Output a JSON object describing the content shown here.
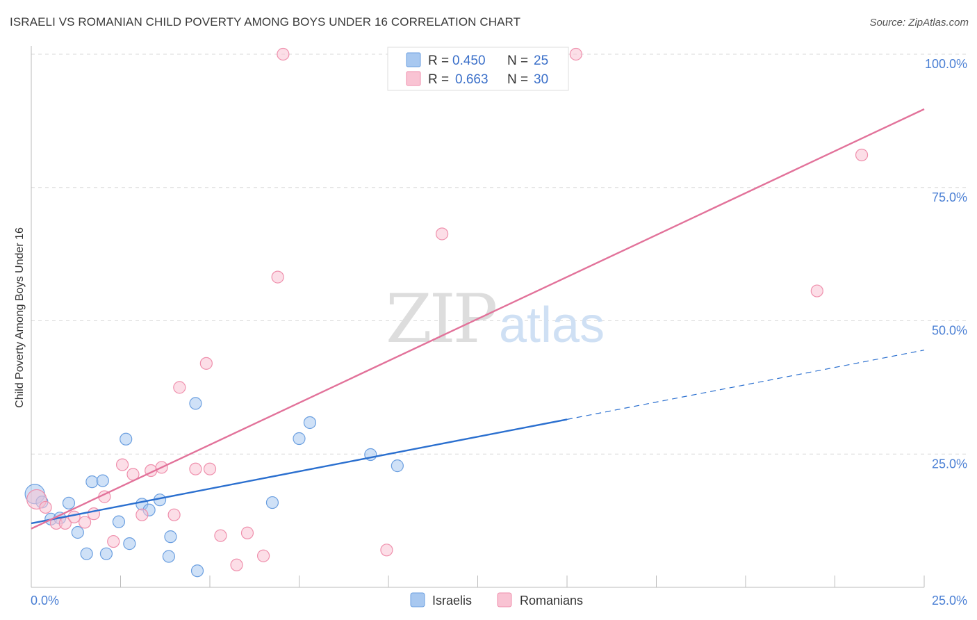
{
  "title": "ISRAELI VS ROMANIAN CHILD POVERTY AMONG BOYS UNDER 16 CORRELATION CHART",
  "source": "Source: ZipAtlas.com",
  "watermark": {
    "zip": "ZIP",
    "atlas": "atlas"
  },
  "chart_data": {
    "type": "scatter",
    "ylabel": "Child Poverty Among Boys Under 16",
    "xlim": [
      0,
      25
    ],
    "ylim": [
      0,
      100
    ],
    "x_tick_labels": [
      "0.0%",
      "25.0%"
    ],
    "y_ticks": [
      25,
      50,
      75,
      100
    ],
    "y_tick_labels": [
      "25.0%",
      "50.0%",
      "75.0%",
      "100.0%"
    ],
    "grid": true,
    "legend_position": "top-center",
    "stats": [
      {
        "r_label": "R =",
        "r_value": "0.450",
        "n_label": "N =",
        "n_value": "25",
        "color": "#a8c8f0",
        "border": "#6b9fe0"
      },
      {
        "r_label": "R =",
        "r_value": "0.663",
        "n_label": "N =",
        "n_value": "30",
        "color": "#f9c3d3",
        "border": "#ef8fac"
      }
    ],
    "series": [
      {
        "name": "Israelis",
        "color": "#a8c8f0",
        "stroke": "#6b9fe0",
        "line_color": "#2a6fcf",
        "trend": {
          "x0": 0,
          "y0": 12.0,
          "x1": 15.0,
          "y1": 31.5,
          "x_dash_end": 25,
          "y_dash_end": 44.5
        },
        "points": [
          {
            "x": 0.1,
            "y": 17.5,
            "big": true
          },
          {
            "x": 0.3,
            "y": 16.0
          },
          {
            "x": 0.55,
            "y": 12.8
          },
          {
            "x": 0.8,
            "y": 13.0
          },
          {
            "x": 1.05,
            "y": 15.8
          },
          {
            "x": 1.3,
            "y": 10.3
          },
          {
            "x": 1.55,
            "y": 6.3
          },
          {
            "x": 1.7,
            "y": 19.8
          },
          {
            "x": 2.0,
            "y": 20.0
          },
          {
            "x": 2.1,
            "y": 6.3
          },
          {
            "x": 2.45,
            "y": 12.3
          },
          {
            "x": 2.65,
            "y": 27.8
          },
          {
            "x": 2.75,
            "y": 8.2
          },
          {
            "x": 3.1,
            "y": 15.6
          },
          {
            "x": 3.3,
            "y": 14.5
          },
          {
            "x": 3.6,
            "y": 16.4
          },
          {
            "x": 3.85,
            "y": 5.8
          },
          {
            "x": 3.9,
            "y": 9.5
          },
          {
            "x": 4.6,
            "y": 34.5
          },
          {
            "x": 4.65,
            "y": 3.1
          },
          {
            "x": 6.75,
            "y": 15.9
          },
          {
            "x": 7.5,
            "y": 27.9
          },
          {
            "x": 7.8,
            "y": 30.9
          },
          {
            "x": 9.5,
            "y": 24.9
          },
          {
            "x": 10.25,
            "y": 22.8
          }
        ]
      },
      {
        "name": "Romanians",
        "color": "#f9c3d3",
        "stroke": "#ef8fac",
        "line_color": "#e2729a",
        "trend": {
          "x0": 0,
          "y0": 11.0,
          "x1": 25,
          "y1": 89.7
        },
        "points": [
          {
            "x": 0.15,
            "y": 16.5,
            "big": true
          },
          {
            "x": 0.4,
            "y": 15.0
          },
          {
            "x": 0.7,
            "y": 12.0
          },
          {
            "x": 0.95,
            "y": 12.0
          },
          {
            "x": 1.2,
            "y": 13.2
          },
          {
            "x": 1.5,
            "y": 12.2
          },
          {
            "x": 1.75,
            "y": 13.8
          },
          {
            "x": 2.05,
            "y": 17.0
          },
          {
            "x": 2.3,
            "y": 8.6
          },
          {
            "x": 2.55,
            "y": 23.0
          },
          {
            "x": 2.85,
            "y": 21.2
          },
          {
            "x": 3.1,
            "y": 13.6
          },
          {
            "x": 3.35,
            "y": 21.9
          },
          {
            "x": 3.65,
            "y": 22.5
          },
          {
            "x": 4.0,
            "y": 13.6
          },
          {
            "x": 4.15,
            "y": 37.5
          },
          {
            "x": 4.6,
            "y": 22.2
          },
          {
            "x": 4.9,
            "y": 42.0
          },
          {
            "x": 5.0,
            "y": 22.2
          },
          {
            "x": 5.3,
            "y": 9.7
          },
          {
            "x": 5.75,
            "y": 4.2
          },
          {
            "x": 6.05,
            "y": 10.2
          },
          {
            "x": 6.5,
            "y": 5.9
          },
          {
            "x": 6.9,
            "y": 58.2
          },
          {
            "x": 7.05,
            "y": 100.0
          },
          {
            "x": 9.95,
            "y": 7.0
          },
          {
            "x": 11.5,
            "y": 66.3
          },
          {
            "x": 15.25,
            "y": 100.0
          },
          {
            "x": 22.0,
            "y": 55.6
          },
          {
            "x": 23.25,
            "y": 81.1
          }
        ]
      }
    ]
  }
}
